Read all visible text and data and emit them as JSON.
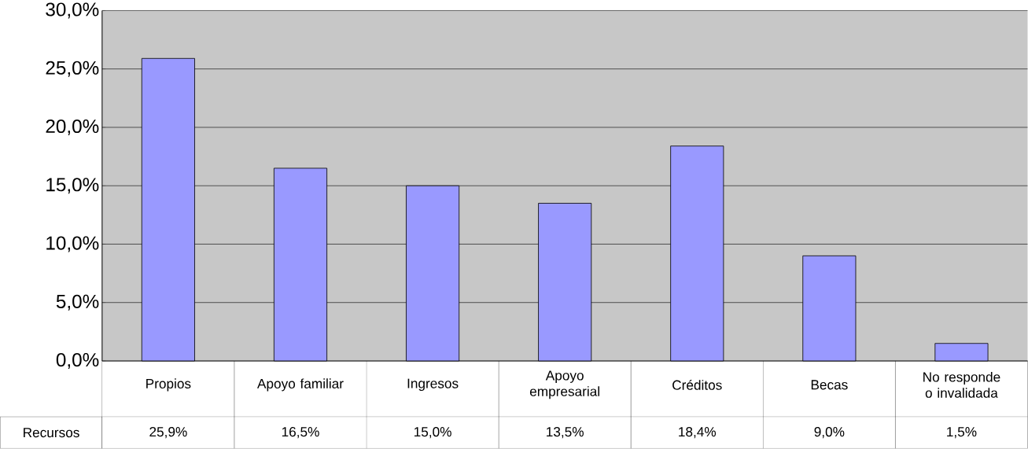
{
  "chart_data": {
    "type": "bar",
    "categories": [
      "Propios",
      "Apoyo familiar",
      "Ingresos",
      "Apoyo empresarial",
      "Créditos",
      "Becas",
      "No responde o invalidada"
    ],
    "series": [
      {
        "name": "Recursos",
        "color": "#9999ff",
        "values": [
          25.9,
          16.5,
          15.0,
          13.5,
          18.4,
          9.0,
          1.5
        ],
        "value_labels": [
          "25,9%",
          "16,5%",
          "15,0%",
          "13,5%",
          "18,4%",
          "9,0%",
          "1,5%"
        ]
      }
    ],
    "ylim": [
      0,
      30
    ],
    "yticks": [
      {
        "value": 0,
        "label": "0,0%"
      },
      {
        "value": 5,
        "label": "5,0%"
      },
      {
        "value": 10,
        "label": "10,0%"
      },
      {
        "value": 15,
        "label": "15,0%"
      },
      {
        "value": 20,
        "label": "20,0%"
      },
      {
        "value": 25,
        "label": "25,0%"
      },
      {
        "value": 30,
        "label": "30,0%"
      }
    ],
    "grid": "y"
  }
}
